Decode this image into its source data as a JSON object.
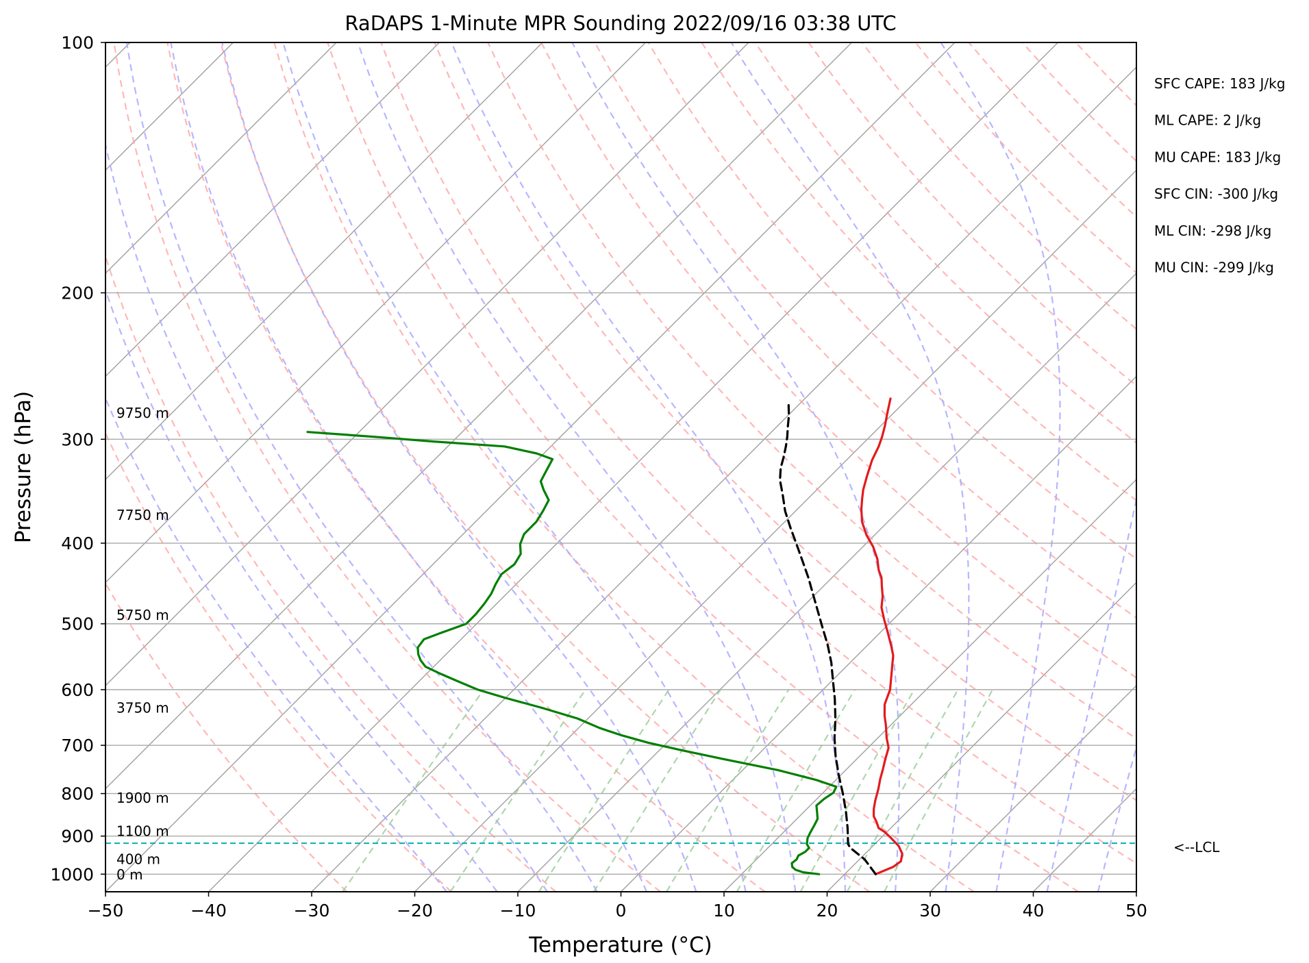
{
  "chart_data": {
    "type": "skew-t",
    "title": "RaDAPS 1-Minute MPR Sounding 2022/09/16 03:38 UTC",
    "xlabel": "Temperature (°C)",
    "ylabel": "Pressure (hPa)",
    "xlim": [
      -50,
      50
    ],
    "ylim": [
      1050,
      100
    ],
    "y_scale": "log",
    "x_ticks": [
      "−50",
      "−40",
      "−30",
      "−20",
      "−10",
      "0",
      "10",
      "20",
      "30",
      "40",
      "50"
    ],
    "x_tick_values": [
      -50,
      -40,
      -30,
      -20,
      -10,
      0,
      10,
      20,
      30,
      40,
      50
    ],
    "y_ticks": [
      "100",
      "200",
      "300",
      "400",
      "500",
      "600",
      "700",
      "800",
      "900",
      "1000"
    ],
    "y_tick_values": [
      100,
      200,
      300,
      400,
      500,
      600,
      700,
      800,
      900,
      1000
    ],
    "grid": true,
    "series": [
      {
        "name": "Temperature",
        "color": "#e31a1c",
        "style": "solid",
        "points": [
          [
            23.0,
            1000
          ],
          [
            24.0,
            980
          ],
          [
            24.2,
            965
          ],
          [
            23.6,
            945
          ],
          [
            22.5,
            925
          ],
          [
            21.0,
            905
          ],
          [
            19.8,
            890
          ],
          [
            18.8,
            880
          ],
          [
            18.0,
            865
          ],
          [
            17.2,
            852
          ],
          [
            16.5,
            835
          ],
          [
            15.8,
            815
          ],
          [
            15.0,
            790
          ],
          [
            14.2,
            768
          ],
          [
            13.6,
            750
          ],
          [
            12.8,
            728
          ],
          [
            12.0,
            705
          ],
          [
            10.8,
            685
          ],
          [
            9.6,
            663
          ],
          [
            8.5,
            645
          ],
          [
            7.4,
            625
          ],
          [
            6.5,
            600
          ],
          [
            5.2,
            576
          ],
          [
            4.3,
            560
          ],
          [
            3.5,
            546
          ],
          [
            2.4,
            532
          ],
          [
            0.8,
            513
          ],
          [
            -0.8,
            495
          ],
          [
            -2.3,
            478
          ],
          [
            -3.3,
            463
          ],
          [
            -4.3,
            451
          ],
          [
            -5.2,
            440
          ],
          [
            -6.2,
            431
          ],
          [
            -7.4,
            418
          ],
          [
            -9.0,
            404
          ],
          [
            -10.8,
            391
          ],
          [
            -12.5,
            377
          ],
          [
            -13.8,
            364
          ],
          [
            -14.7,
            354
          ],
          [
            -15.5,
            345
          ],
          [
            -16.4,
            333
          ],
          [
            -17.5,
            318
          ],
          [
            -18.2,
            306
          ],
          [
            -18.8,
            298
          ],
          [
            -19.6,
            289
          ],
          [
            -20.6,
            279
          ],
          [
            -21.7,
            268
          ]
        ]
      },
      {
        "name": "Dewpoint",
        "color": "#007f00",
        "style": "solid",
        "points": [
          [
            17.5,
            1000
          ],
          [
            15.8,
            995
          ],
          [
            14.8,
            988
          ],
          [
            14.2,
            980
          ],
          [
            13.8,
            970
          ],
          [
            13.9,
            960
          ],
          [
            13.7,
            950
          ],
          [
            14.0,
            940
          ],
          [
            14.0,
            930
          ],
          [
            13.4,
            920
          ],
          [
            12.9,
            905
          ],
          [
            12.6,
            890
          ],
          [
            12.3,
            873
          ],
          [
            12.0,
            858
          ],
          [
            11.2,
            840
          ],
          [
            10.6,
            827
          ],
          [
            10.7,
            812
          ],
          [
            11.0,
            798
          ],
          [
            10.7,
            785
          ],
          [
            8.0,
            770
          ],
          [
            3.5,
            750
          ],
          [
            -3.0,
            727
          ],
          [
            -8.0,
            709
          ],
          [
            -11.8,
            695
          ],
          [
            -15.3,
            680
          ],
          [
            -18.0,
            667
          ],
          [
            -21.0,
            650
          ],
          [
            -25.5,
            631
          ],
          [
            -30.0,
            614
          ],
          [
            -33.5,
            600
          ],
          [
            -36.3,
            586
          ],
          [
            -38.5,
            575
          ],
          [
            -40.8,
            563
          ],
          [
            -41.9,
            553
          ],
          [
            -42.7,
            544
          ],
          [
            -43.4,
            534
          ],
          [
            -43.6,
            522
          ],
          [
            -42.6,
            513
          ],
          [
            -41.0,
            500
          ],
          [
            -41.0,
            487
          ],
          [
            -41.2,
            473
          ],
          [
            -41.5,
            460
          ],
          [
            -42.0,
            448
          ],
          [
            -42.4,
            436
          ],
          [
            -42.1,
            424
          ],
          [
            -42.5,
            412
          ],
          [
            -43.5,
            401
          ],
          [
            -44.1,
            390
          ],
          [
            -44.1,
            377
          ],
          [
            -44.5,
            366
          ],
          [
            -45.0,
            355
          ],
          [
            -46.5,
            345
          ],
          [
            -47.6,
            337
          ],
          [
            -48.1,
            327
          ],
          [
            -48.6,
            317
          ],
          [
            -50.7,
            312
          ],
          [
            -54.5,
            306
          ],
          [
            -61.6,
            302
          ],
          [
            -68.0,
            298
          ],
          [
            -75.0,
            294
          ]
        ]
      },
      {
        "name": "Parcel",
        "color": "#000000",
        "style": "dashed",
        "points": [
          [
            23.0,
            1000
          ],
          [
            20.5,
            960
          ],
          [
            18.0,
            930
          ],
          [
            17.4,
            920
          ],
          [
            15.8,
            880
          ],
          [
            14.0,
            840
          ],
          [
            12.0,
            800
          ],
          [
            9.8,
            760
          ],
          [
            7.6,
            720
          ],
          [
            5.8,
            686
          ],
          [
            4.0,
            650
          ],
          [
            2.0,
            615
          ],
          [
            0.0,
            584
          ],
          [
            -1.8,
            557
          ],
          [
            -3.9,
            530
          ],
          [
            -6.1,
            505
          ],
          [
            -8.2,
            482
          ],
          [
            -10.3,
            460
          ],
          [
            -12.3,
            440
          ],
          [
            -14.5,
            420
          ],
          [
            -16.7,
            401
          ],
          [
            -18.9,
            383
          ],
          [
            -21.0,
            366
          ],
          [
            -22.8,
            350
          ],
          [
            -24.5,
            336
          ],
          [
            -25.6,
            325
          ],
          [
            -26.4,
            315
          ],
          [
            -27.2,
            306
          ],
          [
            -28.0,
            298
          ],
          [
            -28.9,
            290
          ],
          [
            -29.9,
            281
          ],
          [
            -31.2,
            271
          ]
        ]
      }
    ],
    "height_labels": [
      {
        "label": "9750 m",
        "pressure": 279
      },
      {
        "label": "7750 m",
        "pressure": 370
      },
      {
        "label": "5750 m",
        "pressure": 488
      },
      {
        "label": "3750 m",
        "pressure": 631
      },
      {
        "label": "1900 m",
        "pressure": 810
      },
      {
        "label": "1100 m",
        "pressure": 888
      },
      {
        "label": "400 m",
        "pressure": 960
      },
      {
        "label": "0 m",
        "pressure": 1001
      }
    ],
    "lcl": {
      "pressure": 918,
      "label": "<--LCL",
      "color": "#00b0b0"
    },
    "annotations": [
      "SFC CAPE: 183 J/kg",
      "ML CAPE: 2 J/kg",
      "MU CAPE: 183 J/kg",
      "SFC CIN: -300 J/kg",
      "ML CIN: -298 J/kg",
      "MU CIN: -299 J/kg"
    ],
    "reference_lines": {
      "dry_adiabats_theta_C": [
        -30,
        -20,
        -10,
        0,
        10,
        20,
        30,
        40,
        50,
        60,
        70,
        80,
        90,
        100,
        110,
        120,
        130,
        140,
        150,
        160,
        170,
        180
      ],
      "dry_adiabat_color": "#ff9f9f",
      "moist_adiabats_C": [
        -20,
        -15,
        -10,
        -5,
        0,
        5,
        10,
        15,
        20,
        25,
        30,
        35,
        40,
        45
      ],
      "moist_adiabat_color": "#a9a9ff",
      "mixing_ratios_gkg": [
        0.4,
        1,
        2,
        3,
        5,
        8,
        12,
        16,
        20
      ],
      "mixing_ratio_color": "#9fcf9f",
      "isotherm_color": "#a0a0a0"
    }
  }
}
